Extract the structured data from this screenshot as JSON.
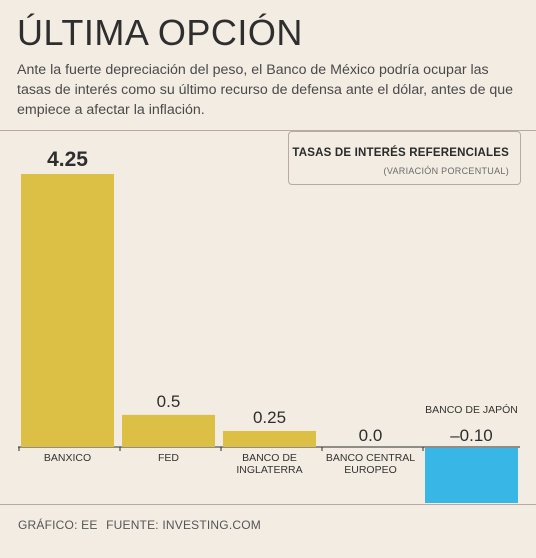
{
  "header": {
    "title": "ÚLTIMA OPCIÓN",
    "subtitle": "Ante la fuerte depreciación del peso, el Banco de México podría ocupar las tasas de interés como su último recurso de defensa ante el dólar, antes de que empiece a afectar la inflación."
  },
  "legend": {
    "title": "TASAS DE INTERÉS REFERENCIALES",
    "subtitle": "(VARIACIÓN PORCENTUAL)"
  },
  "footer": {
    "credit": "GRÁFICO: EE",
    "source": "FUENTE: INVESTING.COM"
  },
  "colors": {
    "bar": "#dcbf45",
    "negative_bar": "#38b6e6",
    "background": "#f3ece2"
  },
  "chart_data": {
    "type": "bar",
    "categories": [
      [
        "BANXICO"
      ],
      [
        "FED"
      ],
      [
        "BANCO DE",
        "INGLATERRA"
      ],
      [
        "BANCO CENTRAL",
        "EUROPEO"
      ],
      [
        "BANCO DE JAPÓN"
      ]
    ],
    "values": [
      4.25,
      0.5,
      0.25,
      0.0,
      -0.1
    ],
    "value_labels": [
      "4.25",
      "0.5",
      "0.25",
      "0.0",
      "–0.10"
    ]
  }
}
